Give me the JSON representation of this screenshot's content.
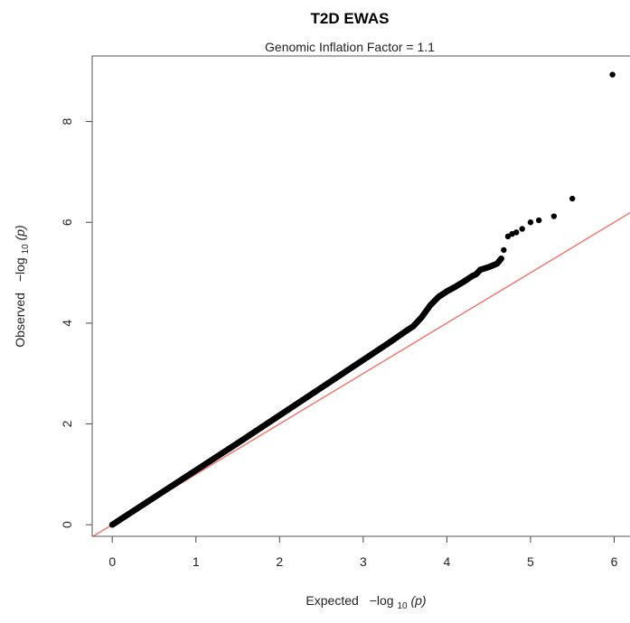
{
  "chart_data": {
    "type": "scatter",
    "title": "T2D EWAS",
    "subtitle": "Genomic Inflation Factor = 1.1",
    "xlabel": {
      "prefix": "Expected",
      "minus_log": "−log",
      "sub": "10",
      "arg": "(p)"
    },
    "ylabel": {
      "prefix": "Observed",
      "minus_log": "−log",
      "sub": "10",
      "arg": "(p)"
    },
    "xlim": [
      -0.24,
      6.2
    ],
    "ylim": [
      -0.23,
      9.3
    ],
    "x_ticks": [
      0,
      1,
      2,
      3,
      4,
      5,
      6
    ],
    "y_ticks": [
      0,
      2,
      4,
      6,
      8
    ],
    "x_tick_labels": [
      "0",
      "1",
      "2",
      "3",
      "4",
      "5",
      "6"
    ],
    "y_tick_labels": [
      "0",
      "2",
      "4",
      "6",
      "8"
    ],
    "reference_line": {
      "slope": 1,
      "intercept": 0,
      "color": "#f07a72"
    },
    "point_color": "#000000",
    "trend_points": [
      [
        0.0,
        0.0
      ],
      [
        0.5,
        0.54
      ],
      [
        1.0,
        1.08
      ],
      [
        1.5,
        1.62
      ],
      [
        2.0,
        2.17
      ],
      [
        2.5,
        2.72
      ],
      [
        3.0,
        3.27
      ],
      [
        3.3,
        3.6
      ],
      [
        3.5,
        3.83
      ],
      [
        3.6,
        3.94
      ],
      [
        3.7,
        4.12
      ],
      [
        3.8,
        4.35
      ],
      [
        3.9,
        4.52
      ],
      [
        4.0,
        4.63
      ],
      [
        4.1,
        4.72
      ],
      [
        4.2,
        4.82
      ],
      [
        4.3,
        4.93
      ],
      [
        4.35,
        4.97
      ],
      [
        4.4,
        5.06
      ],
      [
        4.5,
        5.11
      ],
      [
        4.6,
        5.18
      ],
      [
        4.65,
        5.28
      ]
    ],
    "tail_points": [
      [
        4.68,
        5.45
      ],
      [
        4.73,
        5.72
      ],
      [
        4.78,
        5.77
      ],
      [
        4.83,
        5.8
      ],
      [
        4.9,
        5.87
      ],
      [
        5.0,
        6.0
      ],
      [
        5.1,
        6.04
      ],
      [
        5.28,
        6.12
      ],
      [
        5.5,
        6.47
      ],
      [
        5.98,
        8.93
      ]
    ]
  }
}
